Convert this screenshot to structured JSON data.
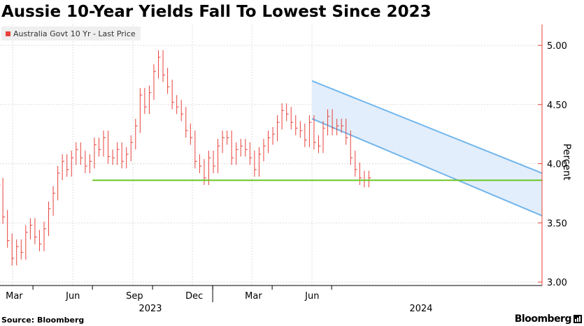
{
  "chart_data": {
    "type": "line",
    "title": "Aussie 10-Year Yields Fall To Lowest Since 2023",
    "ylabel": "Percent",
    "ylim": [
      3.0,
      5.2
    ],
    "yticks": [
      "5.00",
      "4.50",
      "4.00",
      "3.50",
      "3.00"
    ],
    "month_ticks": [
      "Mar",
      "Jun",
      "Sep",
      "Dec",
      "Mar",
      "Jun"
    ],
    "year_ticks": [
      "2023",
      "2024"
    ],
    "grid": true,
    "legend_position": "top-left",
    "series": [
      {
        "name": "Australia Govt 10 Yr - Last Price",
        "type": "bar-ohlc",
        "color": "#e8413a",
        "x": [
          "2023-01-31",
          "2023-02-07",
          "2023-02-14",
          "2023-02-21",
          "2023-02-28",
          "2023-03-07",
          "2023-03-14",
          "2023-03-21",
          "2023-03-28",
          "2023-04-04",
          "2023-04-11",
          "2023-04-18",
          "2023-04-25",
          "2023-05-02",
          "2023-05-09",
          "2023-05-16",
          "2023-05-23",
          "2023-05-30",
          "2023-06-06",
          "2023-06-13",
          "2023-06-20",
          "2023-06-27",
          "2023-07-04",
          "2023-07-11",
          "2023-07-18",
          "2023-07-25",
          "2023-08-01",
          "2023-08-08",
          "2023-08-15",
          "2023-08-22",
          "2023-08-29",
          "2023-09-05",
          "2023-09-12",
          "2023-09-19",
          "2023-09-26",
          "2023-10-03",
          "2023-10-10",
          "2023-10-17",
          "2023-10-24",
          "2023-10-31",
          "2023-11-07",
          "2023-11-14",
          "2023-11-21",
          "2023-11-28",
          "2023-12-05",
          "2023-12-12",
          "2023-12-19",
          "2023-12-26",
          "2024-01-02",
          "2024-01-09",
          "2024-01-16",
          "2024-01-23",
          "2024-01-30",
          "2024-02-06",
          "2024-02-13",
          "2024-02-20",
          "2024-02-27",
          "2024-03-05",
          "2024-03-12",
          "2024-03-19",
          "2024-03-26",
          "2024-04-02",
          "2024-04-09",
          "2024-04-16",
          "2024-04-23",
          "2024-04-30",
          "2024-05-07",
          "2024-05-14",
          "2024-05-21",
          "2024-05-28",
          "2024-06-04",
          "2024-06-11",
          "2024-06-18",
          "2024-06-25",
          "2024-07-02",
          "2024-07-09",
          "2024-07-16",
          "2024-07-23",
          "2024-07-30",
          "2024-08-06",
          "2024-08-13",
          "2024-08-20",
          "2024-08-27"
        ],
        "values": [
          3.9,
          3.82,
          3.55,
          3.35,
          3.2,
          3.3,
          3.25,
          3.42,
          3.48,
          3.38,
          3.32,
          3.45,
          3.62,
          3.75,
          3.92,
          4.02,
          3.95,
          4.05,
          4.12,
          4.05,
          3.98,
          4.02,
          4.16,
          4.12,
          4.22,
          4.06,
          4.05,
          4.12,
          4.02,
          4.08,
          4.18,
          4.32,
          4.58,
          4.48,
          4.6,
          4.78,
          4.9,
          4.75,
          4.65,
          4.52,
          4.48,
          4.42,
          4.28,
          4.22,
          4.02,
          3.98,
          3.88,
          4.05,
          3.98,
          4.15,
          4.22,
          4.22,
          4.05,
          4.12,
          4.15,
          4.12,
          4.05,
          3.95,
          4.08,
          4.15,
          4.22,
          4.25,
          4.35,
          4.45,
          4.42,
          4.35,
          4.3,
          4.28,
          4.2,
          4.35,
          4.18,
          4.15,
          4.3,
          4.4,
          4.3,
          4.32,
          4.32,
          4.22,
          4.05,
          3.95,
          3.88,
          3.86,
          3.88
        ]
      }
    ],
    "annotations": {
      "support_level": 3.86,
      "support_from": "2023-07-01",
      "channel_start": "2024-06-01",
      "channel_upper": [
        4.7,
        3.92
      ],
      "channel_lower": [
        4.38,
        3.56
      ]
    }
  },
  "source_text": "Source: Bloomberg",
  "brand_text": "Bloomberg",
  "colors": {
    "series": "#e8413a",
    "axis": "#e8413a",
    "support_line": "#6cc627",
    "channel_line": "#73b6ec",
    "channel_fill": "#e2eefb",
    "grid": "#dddddd"
  }
}
